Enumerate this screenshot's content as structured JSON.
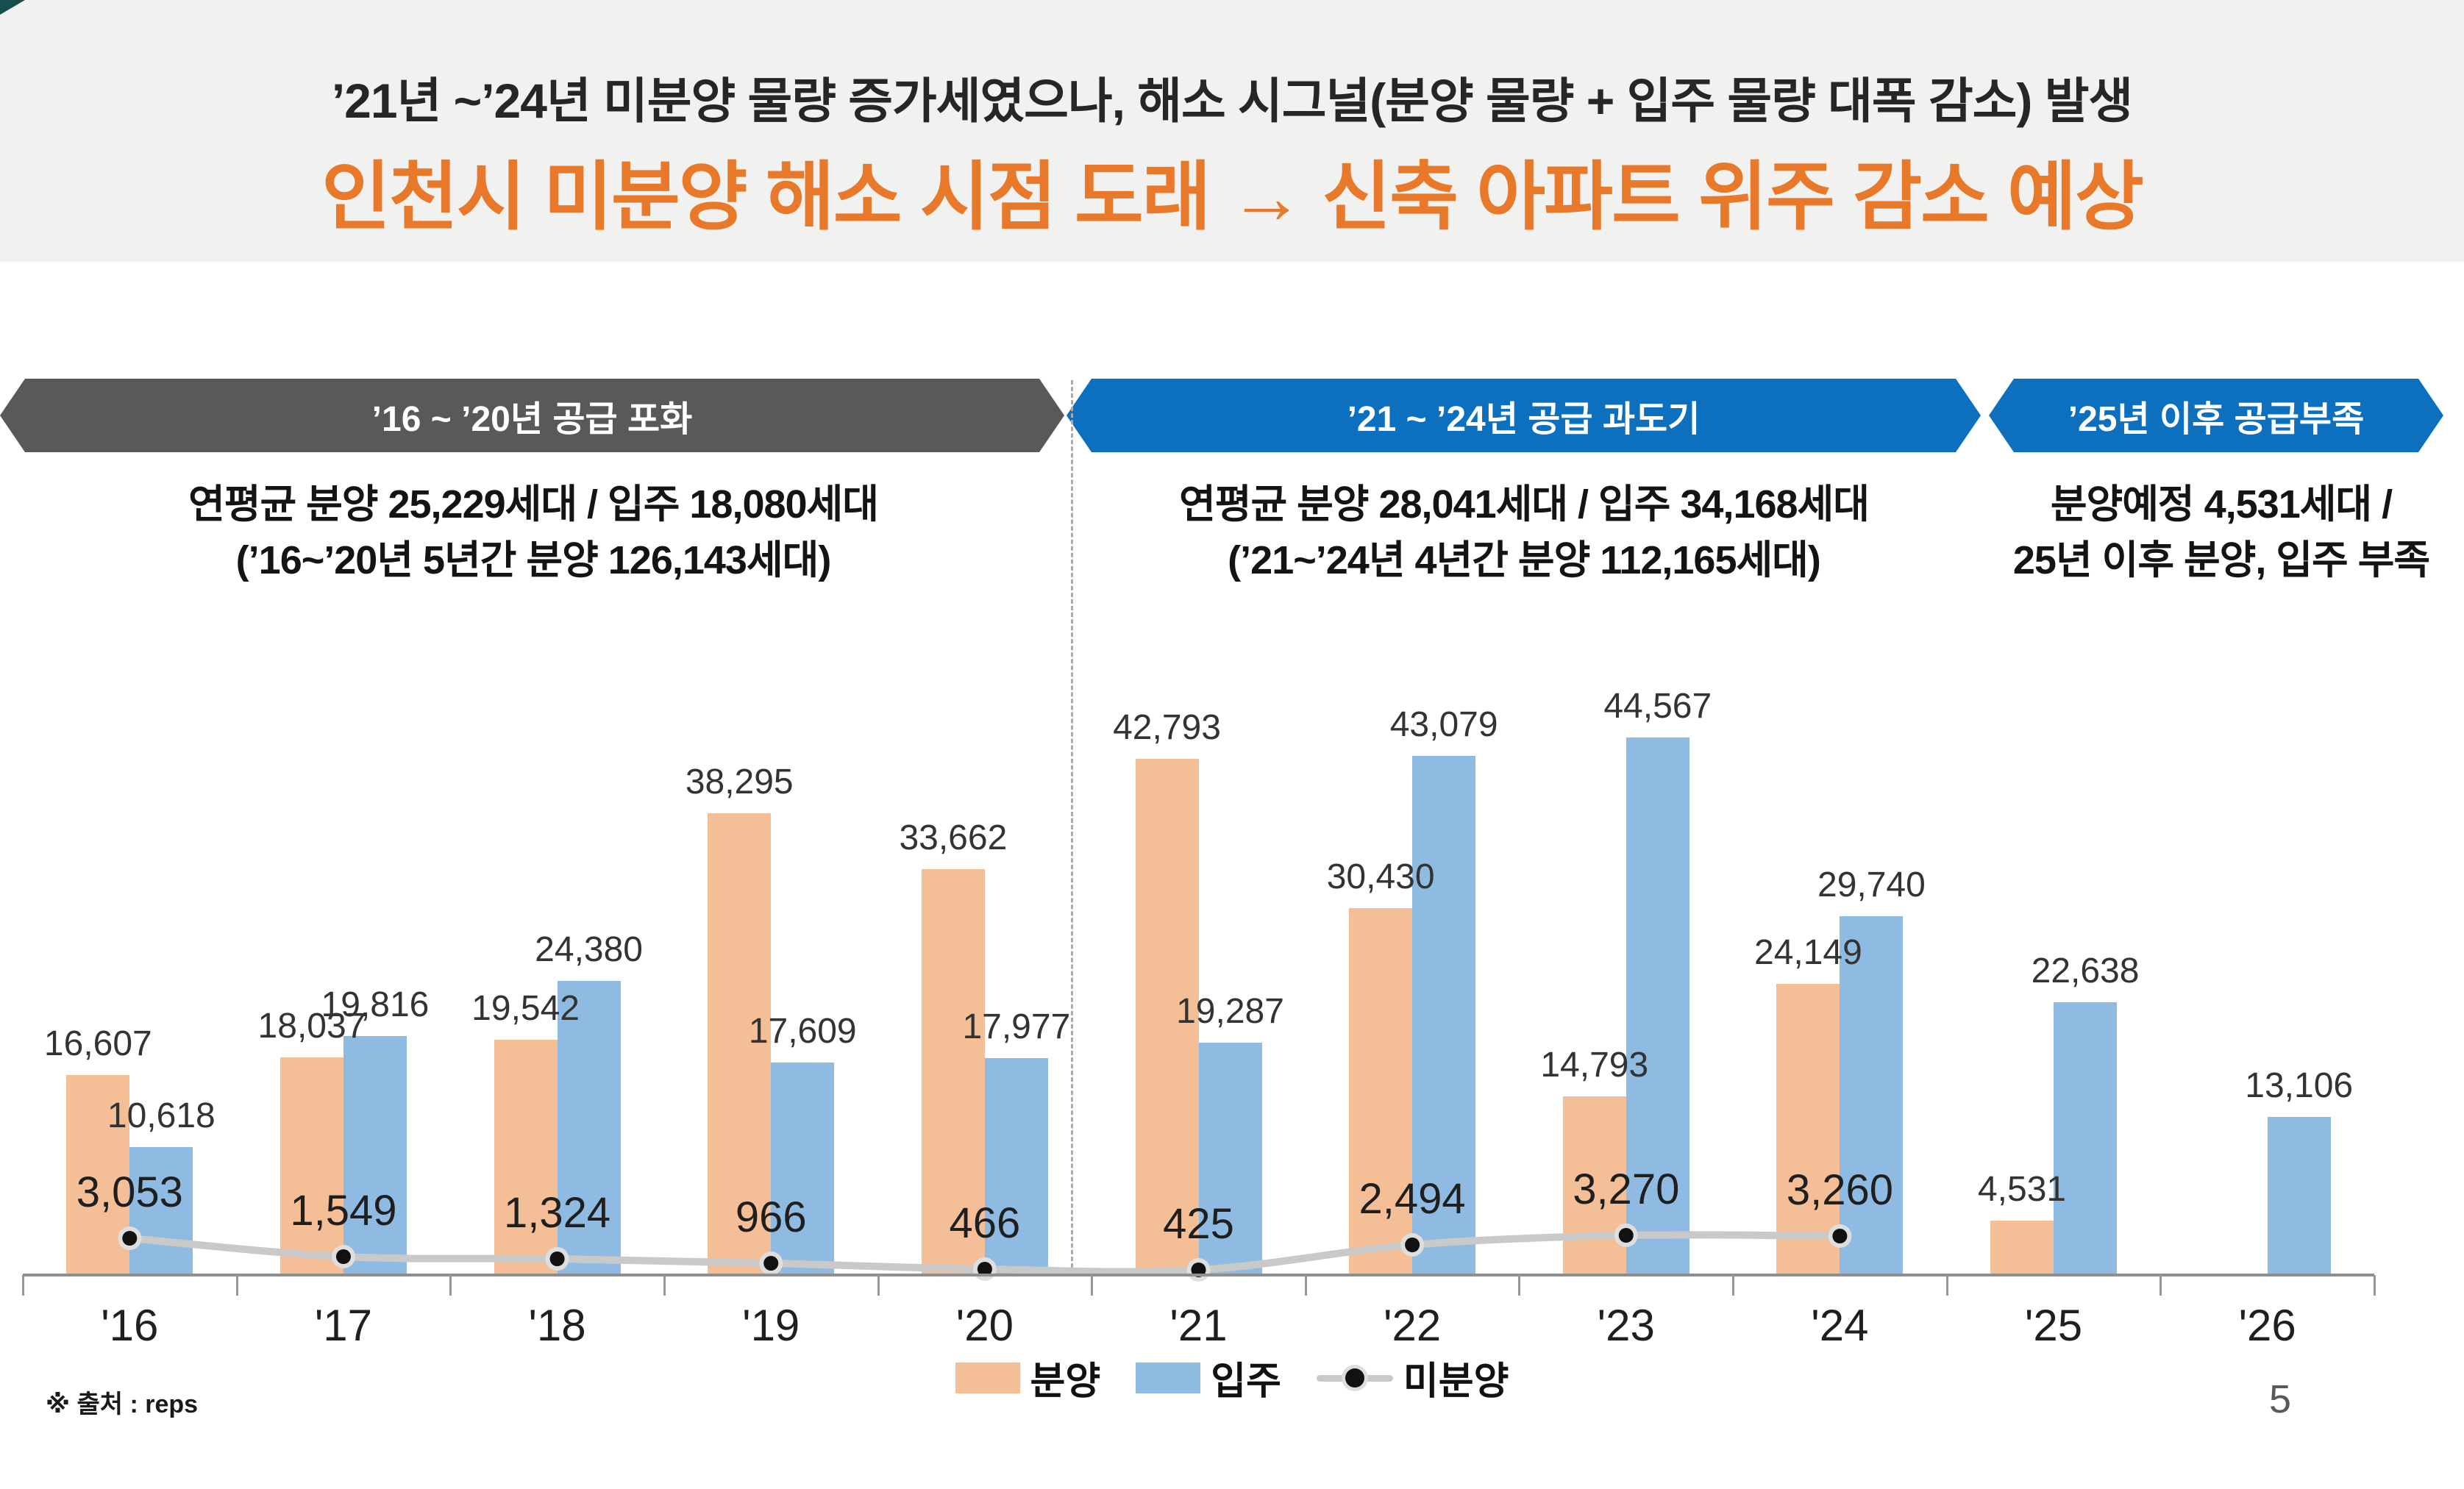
{
  "header": {
    "subtitle": "’21년 ~’24년 미분양 물량 증가세였으나, 해소 시그널(분양 물량 + 입주 물량 대폭 감소) 발생",
    "title": "인천시 미분양 해소 시점 도래 → 신축 아파트 위주 감소 예상"
  },
  "sections": [
    {
      "banner": "’16 ~ ’20년 공급 포화",
      "desc_line1": "연평균 분양 25,229세대 / 입주 18,080세대",
      "desc_line2": "(’16~’20년 5년간 분양 126,143세대)"
    },
    {
      "banner": "’21 ~ ’24년 공급 과도기",
      "desc_line1": "연평균 분양 28,041세대 / 입주 34,168세대",
      "desc_line2": "(’21~’24년 4년간 분양 112,165세대)"
    },
    {
      "banner": "’25년 이후 공급부족",
      "desc_line1": "분양예정 4,531세대 /",
      "desc_line2": "25년 이후 분양, 입주 부족"
    }
  ],
  "chart_data": {
    "type": "bar",
    "categories": [
      "'16",
      "'17",
      "'18",
      "'19",
      "'20",
      "'21",
      "'22",
      "'23",
      "'24",
      "'25",
      "'26"
    ],
    "series": [
      {
        "name": "분양",
        "type": "bar",
        "color": "#F4BE97",
        "values": [
          16607,
          18037,
          19542,
          38295,
          33662,
          42793,
          30430,
          14793,
          24149,
          4531,
          null
        ]
      },
      {
        "name": "입주",
        "type": "bar",
        "color": "#8FBBE3",
        "values": [
          10618,
          19816,
          24380,
          17609,
          17977,
          19287,
          43079,
          44567,
          29740,
          22638,
          13106
        ]
      },
      {
        "name": "미분양",
        "type": "line",
        "color": "#C9C9C9",
        "values": [
          3053,
          1549,
          1324,
          966,
          466,
          425,
          2494,
          3270,
          3260,
          null,
          null
        ]
      }
    ],
    "title": "",
    "xlabel": "",
    "ylabel": "",
    "ylim": [
      0,
      45000
    ],
    "grid": false,
    "legend_position": "bottom",
    "data_labels": true
  },
  "colors": {
    "banner_gray": "#595959",
    "banner_blue": "#0C70BE",
    "title_orange": "#E8782A",
    "header_bg": "#F1F1EF",
    "corner_teal": "#174E4E",
    "axis_gray": "#8F8F8F"
  },
  "footnote": "※ 출처 : reps",
  "page_number": "5"
}
